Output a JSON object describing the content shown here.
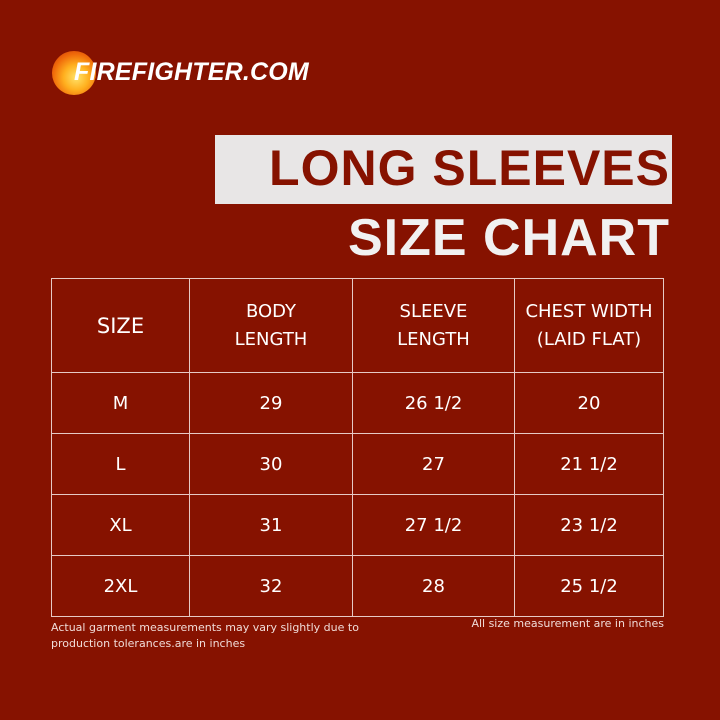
{
  "brand": {
    "logo_text": "FIREFIGHTER.COM"
  },
  "title": {
    "line1": "LONG SLEEVES",
    "line2": "SIZE CHART"
  },
  "table": {
    "headers": [
      [
        "SIZE"
      ],
      [
        "BODY",
        "LENGTH"
      ],
      [
        "SLEEVE",
        "LENGTH"
      ],
      [
        "CHEST WIDTH",
        "(LAID FLAT)"
      ]
    ],
    "rows": [
      [
        "M",
        "29",
        "26 1/2",
        "20"
      ],
      [
        "L",
        "30",
        "27",
        "21 1/2"
      ],
      [
        "XL",
        "31",
        "27 1/2",
        "23 1/2"
      ],
      [
        "2XL",
        "32",
        "28",
        "25 1/2"
      ]
    ]
  },
  "notes": {
    "left": "Actual garment measurements may vary slightly due to production tolerances.are in inches",
    "right": "All size measurement are in inches"
  },
  "colors": {
    "background": "#861200",
    "title_box": "#e8e6e6"
  }
}
